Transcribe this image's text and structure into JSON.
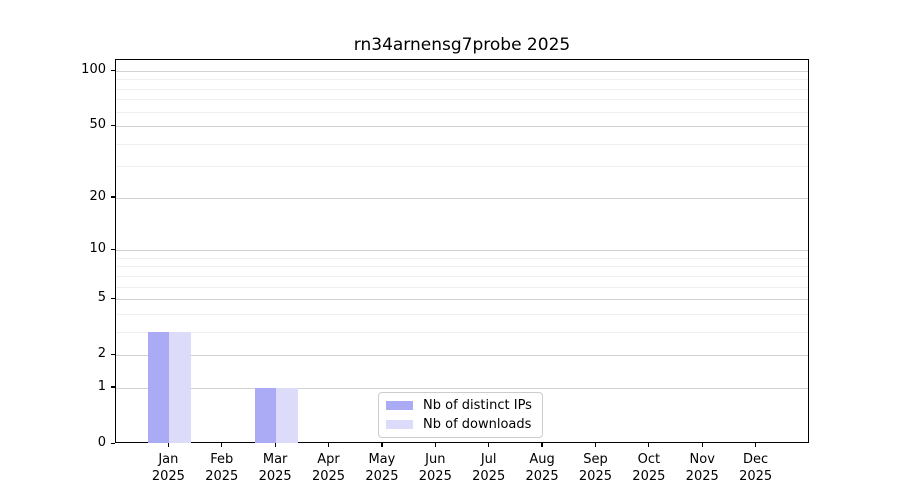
{
  "chart_data": {
    "type": "bar",
    "title": "rn34arnensg7probe 2025",
    "categories": [
      "Jan",
      "Feb",
      "Mar",
      "Apr",
      "May",
      "Jun",
      "Jul",
      "Aug",
      "Sep",
      "Oct",
      "Nov",
      "Dec"
    ],
    "category_year": "2025",
    "series": [
      {
        "name": "Nb of distinct IPs",
        "color": "#aaaaf5",
        "values": [
          3,
          0,
          1,
          0,
          0,
          0,
          0,
          0,
          0,
          0,
          0,
          0
        ]
      },
      {
        "name": "Nb of downloads",
        "color": "#dcdcfa",
        "values": [
          3,
          0,
          1,
          0,
          0,
          0,
          0,
          0,
          0,
          0,
          0,
          0
        ]
      }
    ],
    "xlabel": "",
    "ylabel": "",
    "y_scale": "log1p",
    "y_ticks": [
      0,
      1,
      2,
      5,
      10,
      20,
      50,
      100
    ],
    "y_minor_gridlines": [
      3,
      4,
      6,
      7,
      8,
      9,
      30,
      40,
      60,
      70,
      80,
      90
    ],
    "ylim": [
      0,
      115
    ],
    "grid": true,
    "legend_position": "lower center"
  },
  "colors": {
    "grid_major": "#d2d2d2",
    "grid_minor": "#efefef",
    "axis": "#000000",
    "background": "#ffffff"
  }
}
